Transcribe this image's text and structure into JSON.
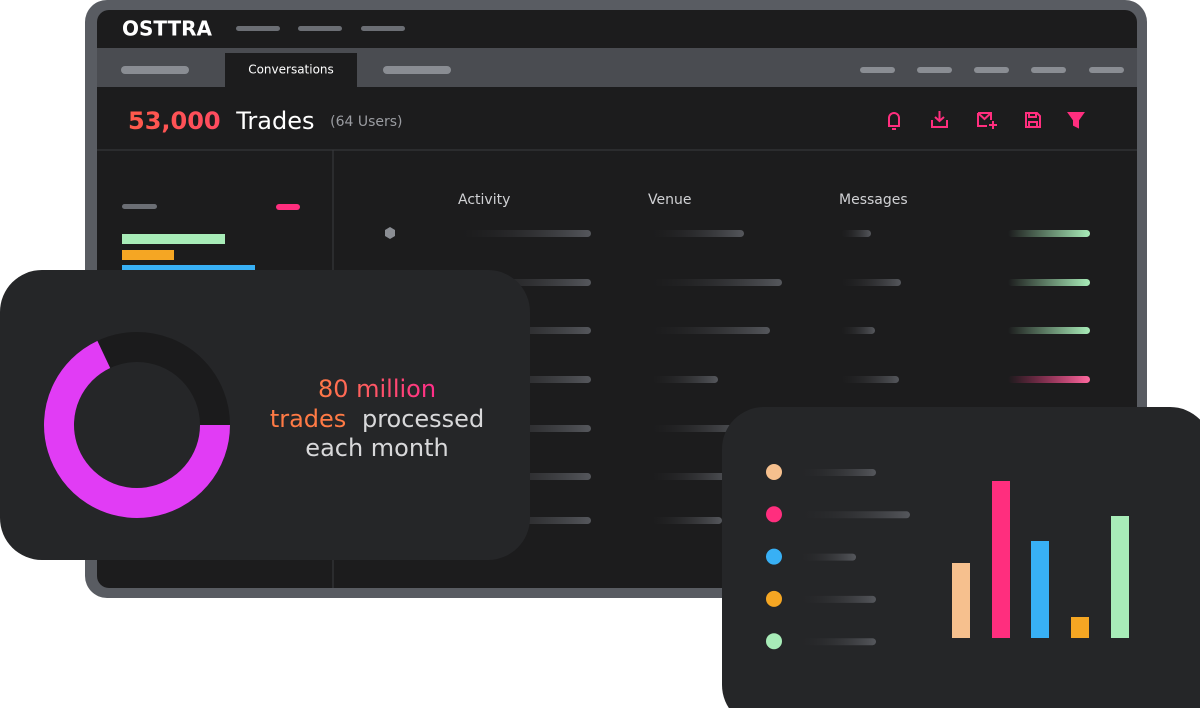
{
  "app": {
    "logo": "OSTTRA",
    "active_tab": "Conversations",
    "count": "53,000",
    "count_label": "Trades",
    "users": "(64 Users)",
    "columns": [
      "Activity",
      "Venue",
      "Messages"
    ]
  },
  "donut_card": {
    "value": 68,
    "color": "#e13cf5",
    "line1": "80 million",
    "line2a": "trades",
    "line2b": "processed",
    "line3": "each month"
  },
  "bar_card": {
    "values": [
      75,
      157,
      97,
      21,
      122
    ],
    "colors": [
      "#f6c08e",
      "#ff2e7e",
      "#38b0f5",
      "#f5a623",
      "#a8ecb8"
    ]
  }
}
